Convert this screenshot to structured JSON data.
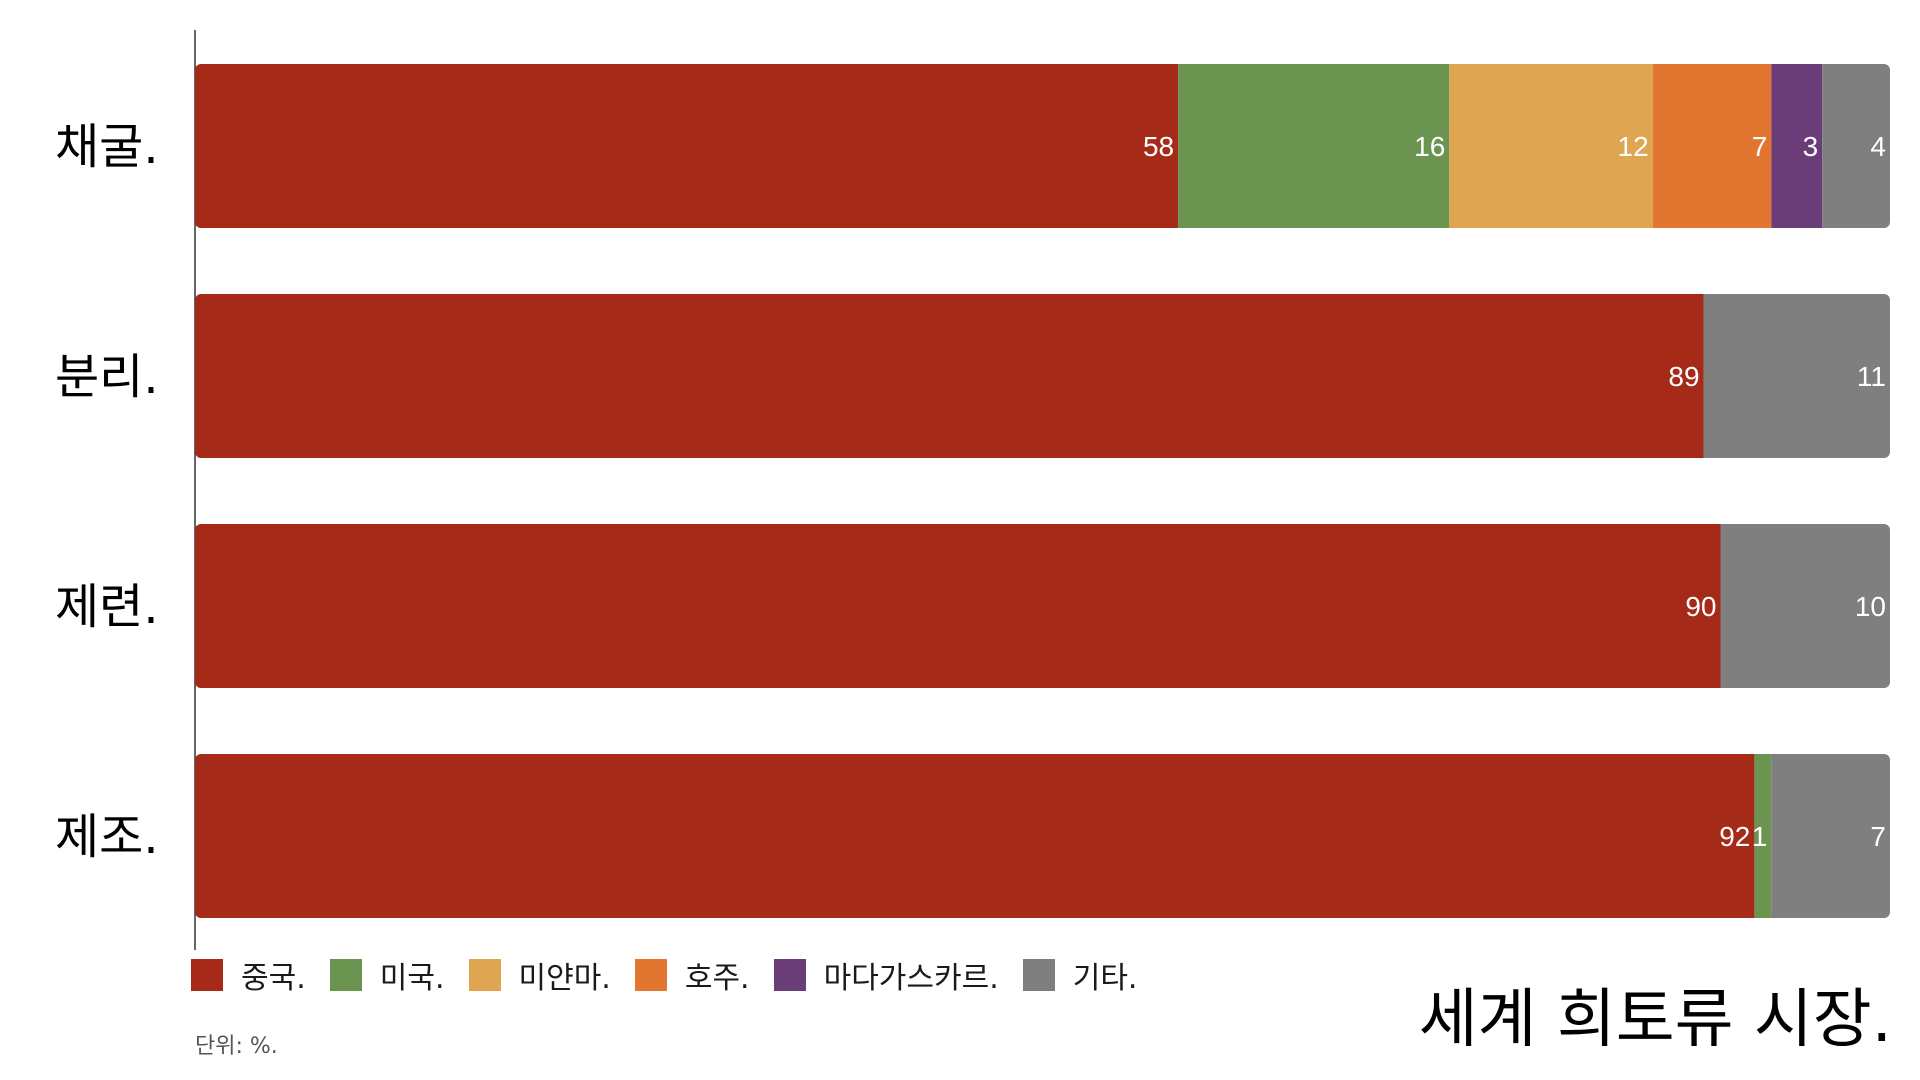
{
  "chart_data": {
    "type": "bar",
    "orientation": "horizontal",
    "stacked": true,
    "title": "세계 희토류 시장.",
    "unit_note": "단위: %.",
    "categories": [
      "채굴.",
      "분리.",
      "제련.",
      "제조."
    ],
    "xlim": [
      0,
      100
    ],
    "grid": false,
    "legend_position": "bottom-left",
    "series": [
      {
        "name": "중국.",
        "color": "#A52A17",
        "values": [
          58,
          89,
          90,
          92
        ]
      },
      {
        "name": "미국.",
        "color": "#6A9450",
        "values": [
          16,
          0,
          0,
          1
        ]
      },
      {
        "name": "미얀마.",
        "color": "#DFA550",
        "values": [
          12,
          0,
          0,
          0
        ]
      },
      {
        "name": "호주.",
        "color": "#E27631",
        "values": [
          7,
          0,
          0,
          0
        ]
      },
      {
        "name": "마다가스카르.",
        "color": "#6A3D79",
        "values": [
          3,
          0,
          0,
          0
        ]
      },
      {
        "name": "기타.",
        "color": "#7F7F7F",
        "values": [
          4,
          11,
          10,
          7
        ]
      }
    ]
  }
}
